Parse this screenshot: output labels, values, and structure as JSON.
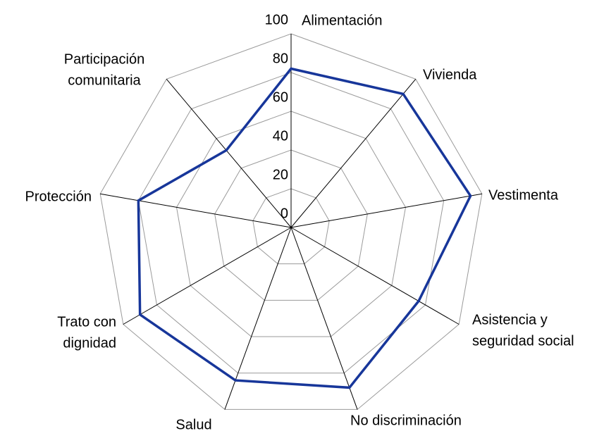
{
  "chart_data": {
    "type": "radar",
    "categories": [
      [
        "Alimentación"
      ],
      [
        "Vivienda"
      ],
      [
        "Vestimenta"
      ],
      [
        "Asistencia y",
        "seguridad social"
      ],
      [
        "No discriminación"
      ],
      [
        "Salud"
      ],
      [
        "Trato con",
        "dignidad"
      ],
      [
        "Protección"
      ],
      [
        "Participación",
        "comunitaria"
      ]
    ],
    "values": [
      82,
      90,
      94,
      76,
      88,
      84,
      90,
      80,
      52
    ],
    "color": "#17369a",
    "ylim": [
      0,
      100
    ],
    "yticks": [
      0,
      20,
      40,
      60,
      80,
      100
    ],
    "grid": true
  }
}
